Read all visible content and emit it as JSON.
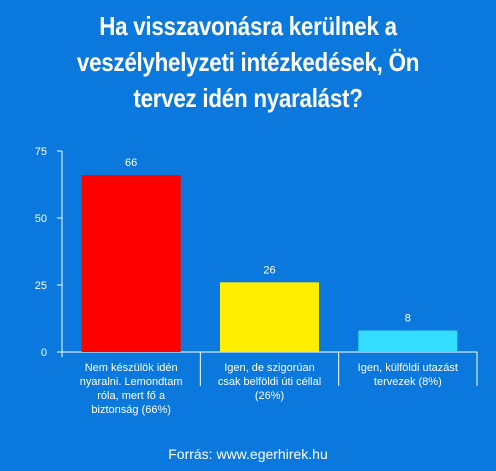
{
  "title": "Ha visszavonásra kerülnek a veszélyhelyzeti intézkedések, Ön tervez idén nyaralást?",
  "source": "Forrás: www.egerhirek.hu",
  "chart_data": {
    "type": "bar",
    "categories": [
      [
        "Nem készülök idén",
        "nyaralni. Lemondtam",
        "róla, mert fő a",
        "biztonság (66%)"
      ],
      [
        "Igen, de szigorúan",
        "csak belföldi úti céllal",
        "(26%)"
      ],
      [
        "Igen, külföldi utazást",
        "tervezek (8%)"
      ]
    ],
    "values": [
      66,
      26,
      8
    ],
    "data_labels": [
      "66",
      "26",
      "8"
    ],
    "colors": [
      "#ff0000",
      "#ffee00",
      "#33ddff"
    ],
    "ylim": [
      0,
      75
    ],
    "yticks": [
      0,
      25,
      50,
      75
    ],
    "xlabel": "",
    "ylabel": "",
    "grid": false
  }
}
